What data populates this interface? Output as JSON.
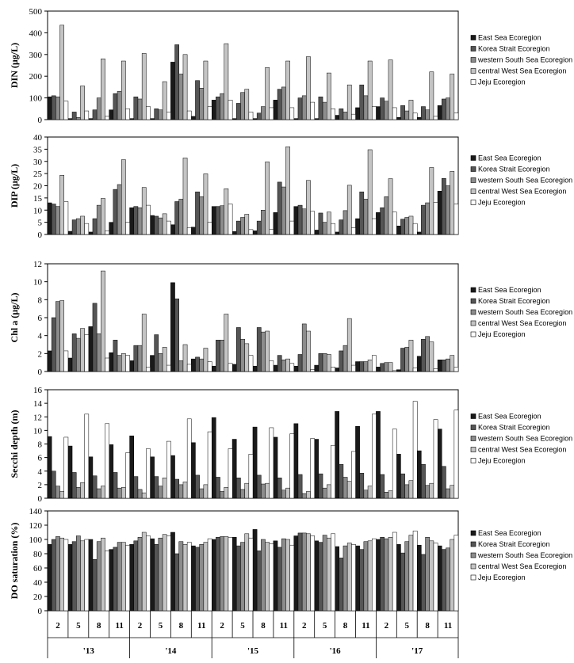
{
  "colors": [
    "#1a1a1a",
    "#555555",
    "#8c8c8c",
    "#c4c4c4",
    "#ffffff"
  ],
  "months": [
    "2",
    "5",
    "8",
    "11"
  ],
  "years": [
    "'13",
    "'14",
    "'15",
    "'16",
    "'17"
  ],
  "chart_data": [
    {
      "type": "bar",
      "ylabel": "DIN (µg/L)",
      "ylim": [
        0,
        500
      ],
      "yticks": [
        0,
        100,
        200,
        300,
        400,
        500
      ],
      "series": [
        {
          "name": "East Sea Ecoregion",
          "values": [
            105,
            5,
            5,
            45,
            5,
            5,
            265,
            15,
            90,
            5,
            5,
            90,
            5,
            5,
            20,
            55,
            60,
            10,
            10,
            65
          ]
        },
        {
          "name": "Korea Strait Ecoregion",
          "values": [
            110,
            35,
            45,
            120,
            105,
            50,
            345,
            180,
            105,
            75,
            30,
            140,
            100,
            105,
            50,
            160,
            100,
            65,
            60,
            95
          ]
        },
        {
          "name": "western South Sea Ecoregion",
          "values": [
            105,
            10,
            100,
            130,
            95,
            45,
            210,
            145,
            120,
            125,
            60,
            150,
            110,
            80,
            35,
            110,
            85,
            40,
            45,
            100
          ]
        },
        {
          "name": "central West Sea Ecoregion",
          "values": [
            435,
            155,
            280,
            270,
            305,
            175,
            300,
            270,
            350,
            140,
            240,
            270,
            290,
            215,
            160,
            270,
            275,
            90,
            220,
            210
          ]
        },
        {
          "name": "Jeju Ecoregion",
          "values": [
            85,
            40,
            15,
            50,
            60,
            35,
            40,
            60,
            90,
            35,
            55,
            55,
            80,
            50,
            25,
            60,
            55,
            30,
            15,
            30
          ]
        }
      ]
    },
    {
      "type": "bar",
      "ylabel": "DIP (µg/L)",
      "ylim": [
        0,
        40
      ],
      "yticks": [
        0,
        5,
        10,
        15,
        20,
        25,
        30,
        35,
        40
      ],
      "series": [
        {
          "name": "East Sea Ecoregion",
          "values": [
            13,
            1.3,
            1,
            5,
            11,
            7.8,
            4,
            3,
            11.5,
            1.2,
            1.5,
            9,
            11.5,
            1.8,
            1,
            6.5,
            9,
            3.5,
            1,
            17.8
          ]
        },
        {
          "name": "Korea Strait Ecoregion",
          "values": [
            12.5,
            6,
            6.5,
            18.5,
            11.5,
            7.5,
            13.5,
            17.5,
            11.5,
            5.5,
            5.5,
            21.5,
            12,
            8.8,
            6,
            17.5,
            11,
            6.3,
            12,
            23
          ]
        },
        {
          "name": "western South Sea Ecoregion",
          "values": [
            11.5,
            6.5,
            12,
            20.5,
            11,
            6.8,
            14.5,
            15.5,
            11.8,
            7,
            10,
            19.5,
            10.5,
            5,
            9.8,
            14.5,
            15.5,
            7,
            13,
            20
          ]
        },
        {
          "name": "central West Sea Ecoregion",
          "values": [
            24.3,
            7.5,
            14.8,
            30.7,
            19.3,
            8.5,
            31.4,
            24.9,
            18.8,
            8.3,
            29.8,
            36,
            22.2,
            9.2,
            20.2,
            34.8,
            22.9,
            7.5,
            27.5,
            25.9
          ]
        },
        {
          "name": "Jeju Ecoregion",
          "values": [
            13.5,
            4.5,
            1.5,
            5,
            12,
            5.5,
            2.8,
            5,
            12.5,
            2,
            2.2,
            5.5,
            9.5,
            4.5,
            2.8,
            6.5,
            9.2,
            4.5,
            13.2,
            12.5
          ]
        }
      ]
    },
    {
      "type": "bar",
      "ylabel": "Chl a (µg/L)",
      "ylim": [
        0,
        12
      ],
      "yticks": [
        0,
        2,
        4,
        6,
        8,
        10,
        12
      ],
      "series": [
        {
          "name": "East Sea Ecoregion",
          "values": [
            2.3,
            1.5,
            5,
            2.1,
            1.2,
            1.8,
            9.9,
            1.4,
            0.6,
            0.8,
            0.6,
            0.7,
            0.6,
            0.7,
            0.4,
            1.1,
            0.5,
            0.2,
            1.7,
            1.3
          ]
        },
        {
          "name": "Korea Strait Ecoregion",
          "values": [
            6,
            4.2,
            7.6,
            3.5,
            2.9,
            4.1,
            8.1,
            1.6,
            3.5,
            4.9,
            4.9,
            1.8,
            1.9,
            2,
            2.3,
            1.1,
            0.9,
            2.6,
            3.6,
            1.3
          ]
        },
        {
          "name": "western South Sea Ecoregion",
          "values": [
            7.8,
            3.7,
            4.2,
            1.8,
            2.9,
            2,
            1.2,
            1.4,
            3.5,
            3.6,
            4.4,
            1.3,
            5.3,
            2,
            2.9,
            1.1,
            1,
            2.7,
            3.9,
            1.4
          ]
        },
        {
          "name": "central West Sea Ecoregion",
          "values": [
            7.9,
            4.8,
            11.2,
            2,
            6.4,
            2.7,
            3,
            2.6,
            6.4,
            3.1,
            4.5,
            1.4,
            4.5,
            1.9,
            5.9,
            1.3,
            1,
            3.5,
            3.3,
            1.8
          ]
        },
        {
          "name": "Jeju Ecoregion",
          "values": [
            2.3,
            4.1,
            1.5,
            1.8,
            0.5,
            0.7,
            0.8,
            1.1,
            0.9,
            1.8,
            1.2,
            0.9,
            0.2,
            0.5,
            0.7,
            1.8,
            0.1,
            0.4,
            0.3,
            0.5
          ]
        }
      ]
    },
    {
      "type": "bar",
      "ylabel": "Secchi depth (m)",
      "ylim": [
        0,
        16
      ],
      "yticks": [
        0,
        2,
        4,
        6,
        8,
        10,
        12,
        14,
        16
      ],
      "series": [
        {
          "name": "East Sea Ecoregion",
          "values": [
            9.1,
            7.7,
            6.1,
            7.9,
            9.2,
            6.1,
            6.3,
            8.2,
            11.9,
            8.7,
            10.5,
            9,
            11,
            8.7,
            12.8,
            10.6,
            12.8,
            6.5,
            7,
            10.2
          ]
        },
        {
          "name": "Korea Strait Ecoregion",
          "values": [
            4,
            3.8,
            3.3,
            3.8,
            3.2,
            3.2,
            2.8,
            3.4,
            3.1,
            3,
            3.4,
            3,
            3.5,
            3.6,
            5,
            3.7,
            3.5,
            3.6,
            5,
            4.7
          ]
        },
        {
          "name": "western South Sea Ecoregion",
          "values": [
            1.8,
            1.6,
            1.4,
            1.5,
            1.3,
            1.8,
            2,
            1.4,
            1,
            1.3,
            2.1,
            1.2,
            0.7,
            1.5,
            3.1,
            1.2,
            0.9,
            2,
            1.9,
            1.4
          ]
        },
        {
          "name": "central West Sea Ecoregion",
          "values": [
            1,
            2.3,
            1.8,
            1.6,
            0.8,
            3,
            2.4,
            2,
            1.6,
            2.2,
            2.2,
            1.5,
            1,
            2,
            2.5,
            1.8,
            1.1,
            2.6,
            2.2,
            1.9
          ]
        },
        {
          "name": "Jeju Ecoregion",
          "values": [
            9,
            12.4,
            11,
            6.7,
            7.3,
            8.4,
            11.7,
            9.8,
            7.3,
            6.5,
            10.4,
            9.5,
            8.8,
            7.8,
            6.9,
            12.4,
            10.2,
            14.3,
            11.6,
            13
          ]
        }
      ]
    },
    {
      "type": "bar",
      "ylabel": "DO saturation (%)",
      "ylim": [
        0,
        140
      ],
      "yticks": [
        0,
        20,
        40,
        60,
        80,
        100,
        120,
        140
      ],
      "series": [
        {
          "name": "East Sea Ecoregion",
          "values": [
            93,
            93,
            100,
            86,
            93,
            101,
            110,
            91,
            100,
            103,
            114,
            98,
            105,
            98,
            90,
            91,
            100,
            93,
            92,
            91
          ]
        },
        {
          "name": "Korea Strait Ecoregion",
          "values": [
            100,
            97,
            72,
            89,
            98,
            93,
            80,
            89,
            103,
            91,
            84,
            89,
            109,
            96,
            74,
            86,
            103,
            81,
            79,
            86
          ]
        },
        {
          "name": "western South Sea Ecoregion",
          "values": [
            104,
            105,
            97,
            96,
            103,
            102,
            97,
            93,
            104,
            96,
            100,
            101,
            109,
            106,
            91,
            97,
            101,
            97,
            103,
            88
          ]
        },
        {
          "name": "central West Sea Ecoregion",
          "values": [
            102,
            98,
            102,
            96,
            110,
            107,
            93,
            96,
            104,
            108,
            96,
            100,
            108,
            102,
            95,
            98,
            103,
            106,
            98,
            100
          ]
        },
        {
          "name": "Jeju Ecoregion",
          "values": [
            100,
            100,
            84,
            92,
            105,
            105,
            96,
            101,
            103,
            102,
            94,
            92,
            105,
            108,
            93,
            101,
            110,
            112,
            95,
            106
          ]
        }
      ]
    }
  ]
}
